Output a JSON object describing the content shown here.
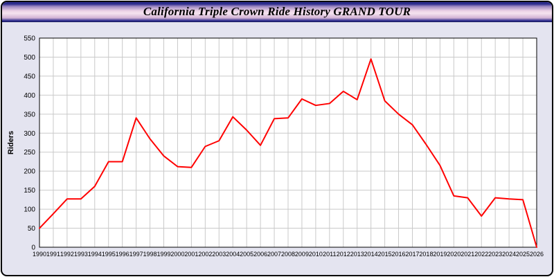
{
  "header": {
    "title": "California Triple Crown Ride History GRAND TOUR"
  },
  "chart_data": {
    "type": "line",
    "title": "California Triple Crown Ride History GRAND TOUR",
    "xlabel": "",
    "ylabel": "Riders",
    "ylim": [
      0,
      550
    ],
    "ytick_step": 50,
    "grid": true,
    "legend": "none",
    "line_color": "#ff0000",
    "grid_color": "#c9c9c9",
    "plot_bg": "#ffffff",
    "categories": [
      "1990",
      "1991",
      "1992",
      "1993",
      "1994",
      "1995",
      "1996",
      "1997",
      "1998",
      "1999",
      "2000",
      "2001",
      "2002",
      "2003",
      "2004",
      "2005",
      "2006",
      "2007",
      "2008",
      "2009",
      "2010",
      "2011",
      "2012",
      "2013",
      "2014",
      "2015",
      "2016",
      "2017",
      "2018",
      "2019",
      "2020",
      "2021",
      "2022",
      "2023",
      "2024",
      "2025",
      "2026"
    ],
    "values": [
      50,
      88,
      127,
      127,
      160,
      225,
      225,
      340,
      285,
      240,
      212,
      210,
      265,
      280,
      343,
      308,
      268,
      338,
      340,
      390,
      373,
      378,
      410,
      388,
      495,
      385,
      350,
      322,
      270,
      215,
      135,
      130,
      82,
      130,
      127,
      125,
      0
    ]
  }
}
